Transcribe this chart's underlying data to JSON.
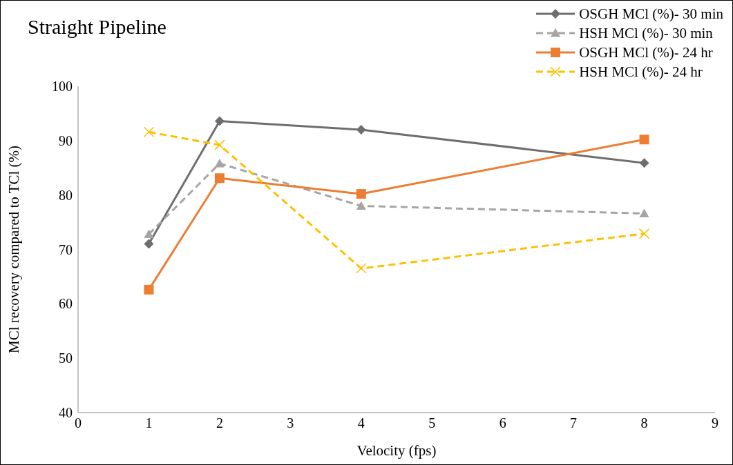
{
  "chart_data": {
    "type": "line",
    "title": "Straight Pipeline",
    "xlabel": "Velocity (fps)",
    "ylabel": "MCl recovery compared to TCl (%)",
    "x": [
      1,
      2,
      4,
      8
    ],
    "series": [
      {
        "name": "OSGH MCl (%)- 30 min",
        "color": "#6e6e6e",
        "marker": "diamond",
        "line_style": "solid",
        "values": [
          71.0,
          93.6,
          92.0,
          85.9
        ]
      },
      {
        "name": "HSH MCl (%)- 30 min",
        "color": "#a5a5a5",
        "marker": "triangle",
        "line_style": "dashed",
        "values": [
          72.8,
          85.8,
          78.0,
          76.6
        ]
      },
      {
        "name": "OSGH MCl (%)- 24 hr",
        "color": "#ed7d31",
        "marker": "square",
        "line_style": "solid",
        "values": [
          62.6,
          83.1,
          80.2,
          90.2
        ]
      },
      {
        "name": "HSH MCl (%)- 24 hr",
        "color": "#ffc000",
        "marker": "cross",
        "line_style": "dashed",
        "values": [
          91.6,
          89.2,
          66.5,
          72.9
        ]
      }
    ],
    "xlim": [
      0,
      9
    ],
    "xticks": [
      0,
      1,
      2,
      3,
      4,
      5,
      6,
      7,
      8,
      9
    ],
    "ylim": [
      40,
      100
    ],
    "yticks": [
      40,
      50,
      60,
      70,
      80,
      90,
      100
    ],
    "grid": false,
    "legend": "top right"
  }
}
